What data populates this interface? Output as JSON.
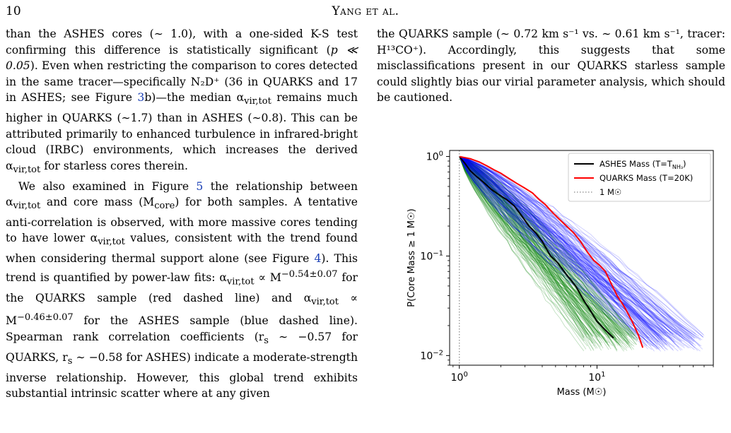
{
  "header": {
    "page_number": "10",
    "running_title": "Yang et al."
  },
  "left_column": {
    "p1": {
      "t1": "than the ASHES cores (∼ 1.0), with a one-sided K-S test confirming this difference is statistically significant (",
      "t2": "p ≪ 0.05",
      "t3": "). Even when restricting the comparison to cores detected in the same tracer—specifically N₂D⁺ (36 in QUARKS and 17 in ASHES; see Figure ",
      "fig_ref": "3",
      "t4": "b)—the median α",
      "t5": " remains much higher in QUARKS (∼1.7) than in ASHES (∼0.8). This can be attributed primarily to enhanced turbulence in infrared-bright cloud (IRBC) environments, which increases the derived α",
      "t6": " for starless cores therein."
    },
    "p2": {
      "t1": "We also examined in Figure ",
      "fig_ref1": "5",
      "t2": " the relationship between α",
      "t3": " and core mass (M",
      "t4": ") for both samples. A tentative anti-correlation is observed, with more massive cores tending to have lower α",
      "t5": " values, consistent with the trend found when considering thermal support alone (see Figure ",
      "fig_ref2": "4",
      "t6": "). This trend is quantified by power-law fits: α",
      "t7": " ∝ M",
      "exp1": "−0.54±0.07",
      "t8": " for the QUARKS sample (red dashed line) and α",
      "t9": " ∝ M",
      "exp2": "−0.46±0.07",
      "t10": " for the ASHES sample (blue dashed line). Spearman rank correlation coefficients (r",
      "t11": " ∼ −0.57 for QUARKS, r",
      "t12": " ∼ −0.58 for ASHES) indicate a moderate-strength inverse relationship. However, this global trend exhibits substantial intrinsic scatter where at any given"
    },
    "sub_vir_tot": "vir,tot",
    "sub_core": "core",
    "sub_s": "s"
  },
  "right_column": {
    "t1": "the QUARKS sample (∼ 0.72 km s⁻¹ vs. ∼ 0.61 km s⁻¹, tracer: H¹³CO⁺). Accordingly, this suggests that some misclassifications present in our QUARKS starless sample could slightly bias our virial parameter analysis, which should be cautioned."
  },
  "chart_data": {
    "type": "line",
    "xlabel": "Mass (M☉)",
    "ylabel": "P(Core Mass ≥ 1 M☉)",
    "xscale": "log",
    "yscale": "log",
    "xlim": [
      0.85,
      70
    ],
    "ylim": [
      0.008,
      1.15
    ],
    "x_ticks": [
      {
        "base": "10",
        "exp": "0",
        "value": 1
      },
      {
        "base": "10",
        "exp": "1",
        "value": 10
      }
    ],
    "y_ticks": [
      {
        "base": "10",
        "exp": "0",
        "value": 1
      },
      {
        "base": "10",
        "exp": "−1",
        "value": 0.1
      },
      {
        "base": "10",
        "exp": "−2",
        "value": 0.01
      }
    ],
    "reference_line": {
      "label": "1 M☉",
      "x": 1,
      "style": "dotted",
      "color": "#888888"
    },
    "legend_placement": "top-right",
    "series": [
      {
        "name": "ASHES Mass (T=TNH₃)",
        "legend_main": "ASHES Mass (T=T",
        "legend_sub": "NH₃",
        "legend_end": ")",
        "color": "#000000",
        "x": [
          1.0,
          1.1,
          1.2,
          1.35,
          1.5,
          1.7,
          1.9,
          2.2,
          2.5,
          2.8,
          3.2,
          3.6,
          4.0,
          4.6,
          5.2,
          6.0,
          7.0,
          8.0,
          9.0,
          10.0,
          11.5,
          13.2
        ],
        "y": [
          1.0,
          0.85,
          0.72,
          0.62,
          0.55,
          0.47,
          0.42,
          0.37,
          0.32,
          0.26,
          0.2,
          0.17,
          0.14,
          0.1,
          0.085,
          0.065,
          0.05,
          0.036,
          0.028,
          0.022,
          0.018,
          0.015
        ]
      },
      {
        "name": "QUARKS Mass (T=20K)",
        "legend_main": "QUARKS Mass (T=20K)",
        "color": "#ff0000",
        "x": [
          1.0,
          1.2,
          1.4,
          1.6,
          1.8,
          2.0,
          2.3,
          2.6,
          3.0,
          3.4,
          3.8,
          4.2,
          4.8,
          5.4,
          6.0,
          6.8,
          7.6,
          8.5,
          9.5,
          10.5,
          11.5,
          12.5,
          14.0,
          16.0,
          18.0,
          20.0,
          21.5
        ],
        "y": [
          1.0,
          0.95,
          0.88,
          0.8,
          0.73,
          0.68,
          0.6,
          0.54,
          0.48,
          0.43,
          0.37,
          0.33,
          0.27,
          0.23,
          0.2,
          0.17,
          0.14,
          0.11,
          0.09,
          0.08,
          0.07,
          0.055,
          0.04,
          0.03,
          0.022,
          0.016,
          0.012
        ]
      }
    ],
    "bootstrap_ensembles": [
      {
        "sample": "ASHES",
        "color": "#008000",
        "x_max_range": [
          8,
          20
        ]
      },
      {
        "sample": "QUARKS",
        "color": "#0000ff",
        "x_max_range": [
          22,
          60
        ]
      }
    ]
  }
}
